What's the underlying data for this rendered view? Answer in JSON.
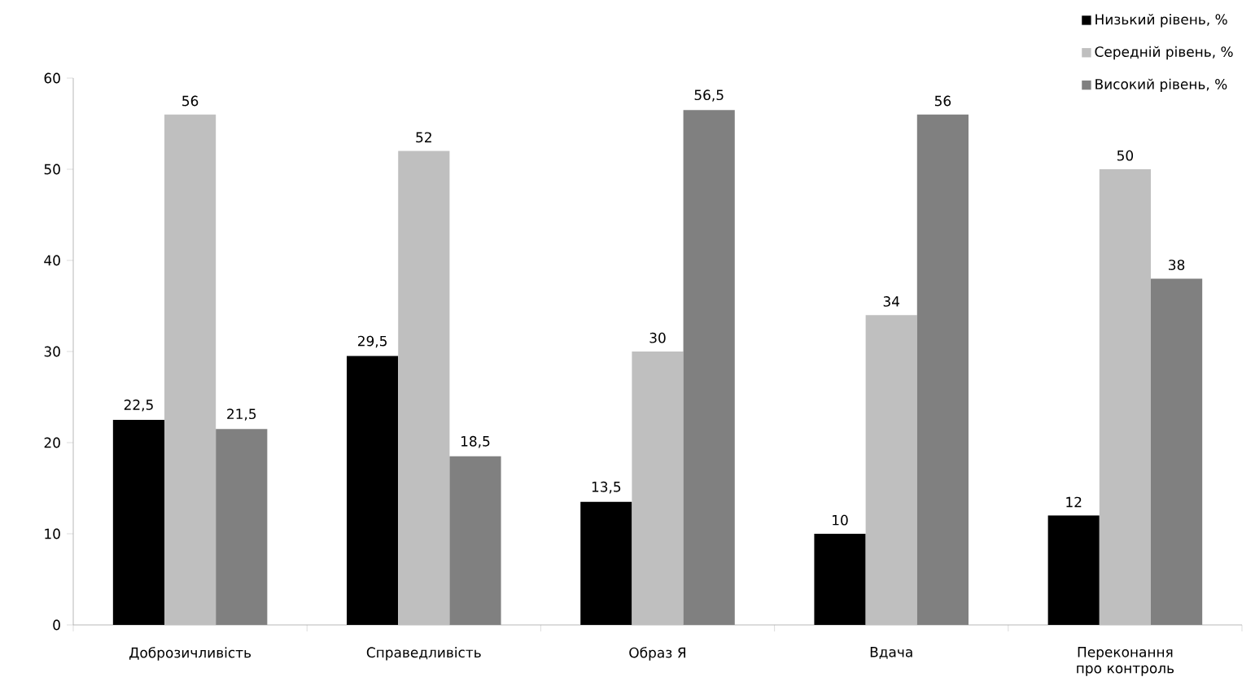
{
  "chart_data": {
    "type": "bar",
    "categories": [
      "Доброзичливість",
      "Справедливість",
      "Образ Я",
      "Вдача",
      "Переконання про контроль"
    ],
    "series": [
      {
        "name": "Низький рівень, %",
        "color": "#000000",
        "values": [
          22.5,
          29.5,
          13.5,
          10,
          12
        ],
        "value_labels": [
          "22,5",
          "29,5",
          "13,5",
          "10",
          "12"
        ]
      },
      {
        "name": "Середній рівень, %",
        "color": "#bfbfbf",
        "values": [
          56,
          52,
          30,
          34,
          50
        ],
        "value_labels": [
          "56",
          "52",
          "30",
          "34",
          "50"
        ]
      },
      {
        "name": "Високий рівень, %",
        "color": "#808080",
        "values": [
          21.5,
          18.5,
          56.5,
          56,
          38
        ],
        "value_labels": [
          "21,5",
          "18,5",
          "56,5",
          "56",
          "38"
        ]
      }
    ],
    "ylim": [
      0,
      60
    ],
    "yticks": [
      0,
      10,
      20,
      30,
      40,
      50,
      60
    ],
    "grid": false,
    "legend": "top right"
  }
}
